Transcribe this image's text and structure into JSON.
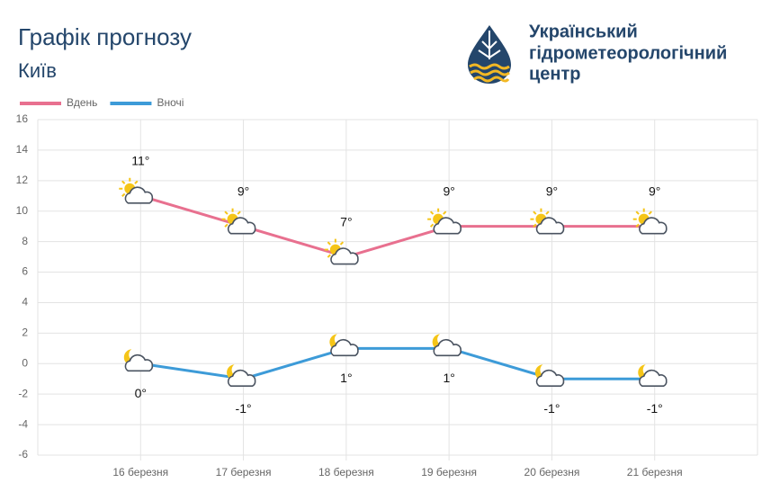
{
  "header": {
    "title": "Графік прогнозу",
    "subtitle": "Київ",
    "org": [
      "Український",
      "гідрометеорологічний",
      "центр"
    ]
  },
  "chart_data": {
    "type": "line",
    "categories": [
      "16 березня",
      "17 березня",
      "18 березня",
      "19 березня",
      "20 березня",
      "21 березня"
    ],
    "series": [
      {
        "name": "Вдень",
        "color": "#e8708f",
        "values": [
          11,
          9,
          7,
          9,
          9,
          9
        ],
        "value_labels": [
          "11°",
          "9°",
          "7°",
          "9°",
          "9°",
          "9°"
        ]
      },
      {
        "name": "Вночі",
        "color": "#3d9bd8",
        "values": [
          0,
          -1,
          1,
          1,
          -1,
          -1
        ],
        "value_labels": [
          "0°",
          "-1°",
          "1°",
          "1°",
          "-1°",
          "-1°"
        ]
      }
    ],
    "ylim": [
      -6,
      16
    ],
    "yticks": [
      -6,
      -4,
      -2,
      0,
      2,
      4,
      6,
      8,
      10,
      12,
      14,
      16
    ],
    "grid": true
  }
}
